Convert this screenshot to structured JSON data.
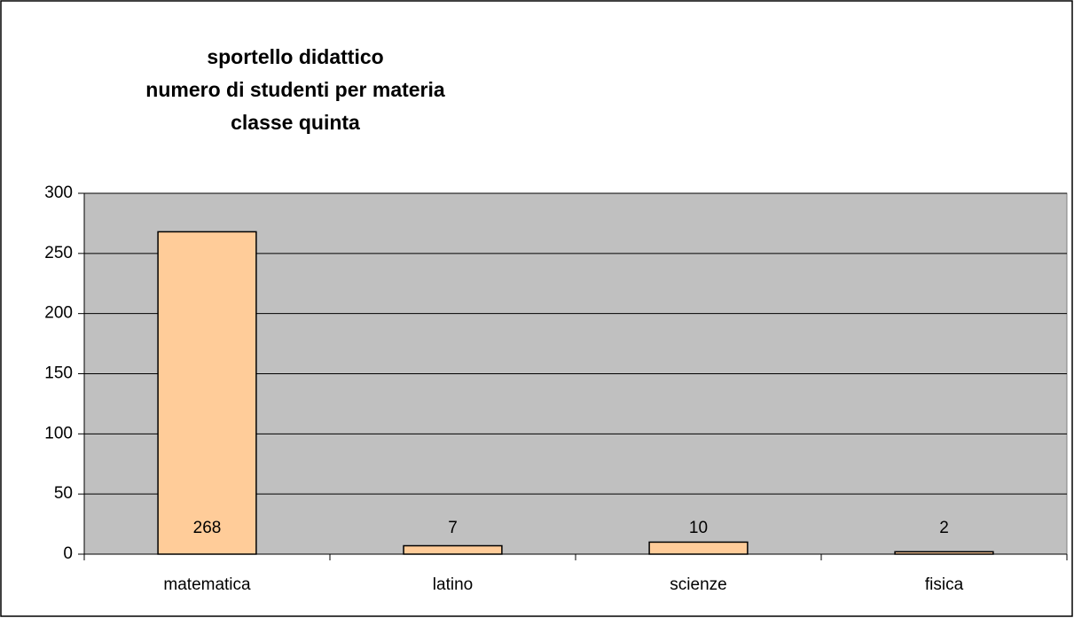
{
  "chart_data": {
    "type": "bar",
    "title": [
      "sportello didattico",
      "numero di studenti per materia",
      "classe quinta"
    ],
    "categories": [
      "matematica",
      "latino",
      "scienze",
      "fisica"
    ],
    "values": [
      268,
      7,
      10,
      2
    ],
    "color": "#ffcc99",
    "ylim": [
      0,
      300
    ],
    "yticks": [
      0,
      50,
      100,
      150,
      200,
      250,
      300
    ],
    "grid": true
  }
}
